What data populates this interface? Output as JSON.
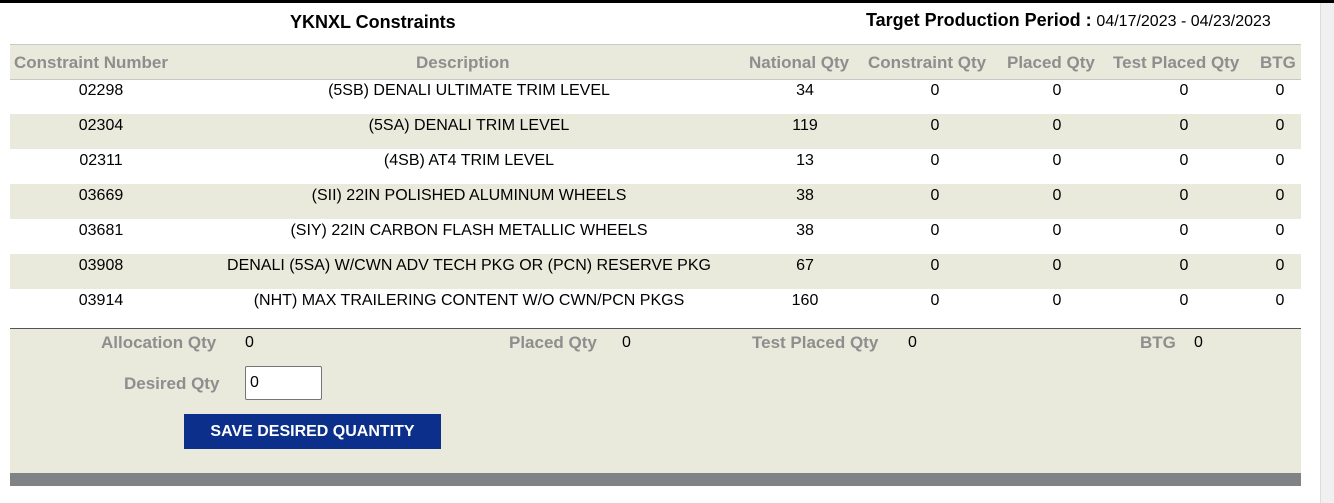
{
  "title": "YKNXL Constraints",
  "target_period": {
    "label": "Target Production Period :",
    "value": "04/17/2023 - 04/23/2023"
  },
  "columns": [
    "Constraint Number",
    "Description",
    "National Qty",
    "Constraint Qty",
    "Placed Qty",
    "Test Placed Qty",
    "BTG"
  ],
  "rows": [
    [
      "02298",
      "(5SB) DENALI ULTIMATE TRIM LEVEL",
      "34",
      "0",
      "0",
      "0",
      "0"
    ],
    [
      "02304",
      "(5SA) DENALI TRIM LEVEL",
      "119",
      "0",
      "0",
      "0",
      "0"
    ],
    [
      "02311",
      "(4SB) AT4 TRIM LEVEL",
      "13",
      "0",
      "0",
      "0",
      "0"
    ],
    [
      "03669",
      "(SII) 22IN POLISHED ALUMINUM WHEELS",
      "38",
      "0",
      "0",
      "0",
      "0"
    ],
    [
      "03681",
      "(SIY) 22IN CARBON FLASH METALLIC WHEELS",
      "38",
      "0",
      "0",
      "0",
      "0"
    ],
    [
      "03908",
      "DENALI (5SA) W/CWN ADV TECH PKG OR (PCN) RESERVE PKG",
      "67",
      "0",
      "0",
      "0",
      "0"
    ],
    [
      "03914",
      "(NHT) MAX TRAILERING CONTENT W/O CWN/PCN PKGS",
      "160",
      "0",
      "0",
      "0",
      "0"
    ]
  ],
  "footer": {
    "allocation_label": "Allocation Qty",
    "allocation_value": "0",
    "placed_label": "Placed Qty",
    "placed_value": "0",
    "test_placed_label": "Test Placed Qty",
    "test_placed_value": "0",
    "btg_label": "BTG",
    "btg_value": "0",
    "desired_label": "Desired Qty",
    "desired_value": "0",
    "save_label": "SAVE DESIRED QUANTITY"
  },
  "colors": {
    "band": "#e9e9dc",
    "header_text": "#8e8e8e",
    "button": "#0b2f8a",
    "bottom_bar": "#7f8386"
  }
}
